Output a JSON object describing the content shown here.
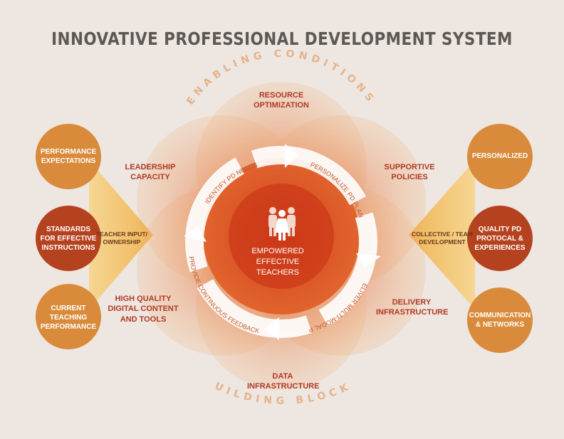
{
  "title": "INNOVATIVE PROFESSIONAL DEVELOPMENT SYSTEM",
  "arc_labels": {
    "top": "ENABLING CONDITIONS",
    "bottom": "BUILDING BLOCKS"
  },
  "center": {
    "line1": "EMPOWERED",
    "line2": "EFFECTIVE",
    "line3": "TEACHERS"
  },
  "cycle_steps": [
    "IDENTIFY PD NEEDS",
    "PERSONALIZE PD PLAN",
    "DELIVER MULTI-MODAL PD",
    "PROVIDE CONTINUOUS FEEDBACK"
  ],
  "petals": {
    "resource": {
      "line1": "RESOURCE",
      "line2": "OPTIMIZATION"
    },
    "supportive": {
      "line1": "SUPPORTIVE",
      "line2": "POLICIES"
    },
    "delivery": {
      "line1": "DELIVERY",
      "line2": "INFRASTRUCTURE"
    },
    "data": {
      "line1": "DATA",
      "line2": "INFRASTRUCTURE"
    },
    "digital": {
      "line1": "HIGH QUALITY",
      "line2": "DIGITAL CONTENT",
      "line3": "AND TOOLS"
    },
    "leadership": {
      "line1": "LEADERSHIP",
      "line2": "CAPACITY"
    }
  },
  "left": {
    "funnel_label": {
      "line1": "TEACHER INPUT/",
      "line2": "OWNERSHIP"
    },
    "circles": [
      {
        "line1": "PERFORMANCE",
        "line2": "EXPECTATIONS"
      },
      {
        "line1": "STANDARDS",
        "line2": "FOR EFFECTIVE",
        "line3": "INSTRUCTIONS"
      },
      {
        "line1": "CURRENT",
        "line2": "TEACHING",
        "line3": "PERFORMANCE"
      }
    ]
  },
  "right": {
    "funnel_label": {
      "line1": "COLLECTIVE / TEAM",
      "line2": "DEVELOPMENT"
    },
    "circles": [
      {
        "line1": "PERSONALIZED"
      },
      {
        "line1": "QUALITY PD",
        "line2": "PROTOCAL &",
        "line3": "EXPERIENCES"
      },
      {
        "line1": "COMMUNICATION",
        "line2": "& NETWORKS"
      }
    ]
  },
  "colors": {
    "background": "#eee6e0",
    "orange": "#d98b3b",
    "red": "#b5421f",
    "label_red": "#b03a24",
    "title_gray": "#5c5956",
    "arc_text": "#e3b48c"
  }
}
